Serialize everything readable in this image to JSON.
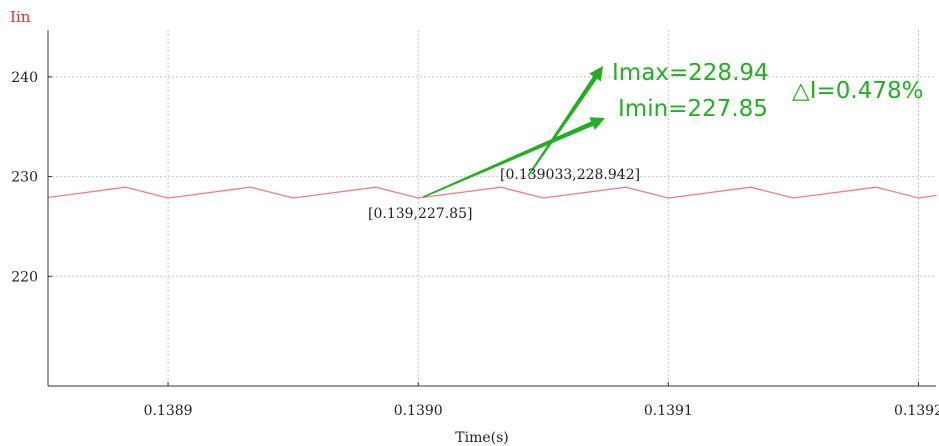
{
  "chart_data": {
    "type": "line",
    "signal_label": "Iin",
    "xlabel": "Time(s)",
    "ylabel": "",
    "xlim": [
      0.138852,
      0.139207
    ],
    "ylim": [
      209.0,
      244.7
    ],
    "x_ticks": [
      0.1389,
      0.139,
      0.1391,
      0.1392
    ],
    "x_tick_labels": [
      "0.1389",
      "0.1390",
      "0.1391",
      "0.1392"
    ],
    "y_ticks": [
      240,
      230,
      220
    ],
    "y_tick_labels": [
      "240",
      "230",
      "220"
    ],
    "grid": true,
    "series": [
      {
        "name": "Iin",
        "color": "#f08080",
        "x": [
          0.138852,
          0.138883,
          0.1389,
          0.138933,
          0.13895,
          0.138983,
          0.139,
          0.139033,
          0.13905,
          0.139083,
          0.1391,
          0.139133,
          0.13915,
          0.139183,
          0.1392,
          0.139207
        ],
        "y": [
          227.9,
          228.94,
          227.85,
          228.94,
          227.85,
          228.94,
          227.85,
          228.94,
          227.85,
          228.94,
          227.85,
          228.94,
          227.85,
          228.94,
          227.85,
          228.1
        ]
      }
    ],
    "cursors": [
      {
        "x": 0.139033,
        "y": 228.942,
        "label": "[0.139033,228.942]"
      },
      {
        "x": 0.139,
        "y": 227.85,
        "label": "[0.139,227.85]"
      }
    ],
    "annotations": {
      "imax": "Imax=228.94",
      "imin": "Imin=227.85",
      "delta": "△I=0.478%",
      "color": "#22b022"
    }
  }
}
